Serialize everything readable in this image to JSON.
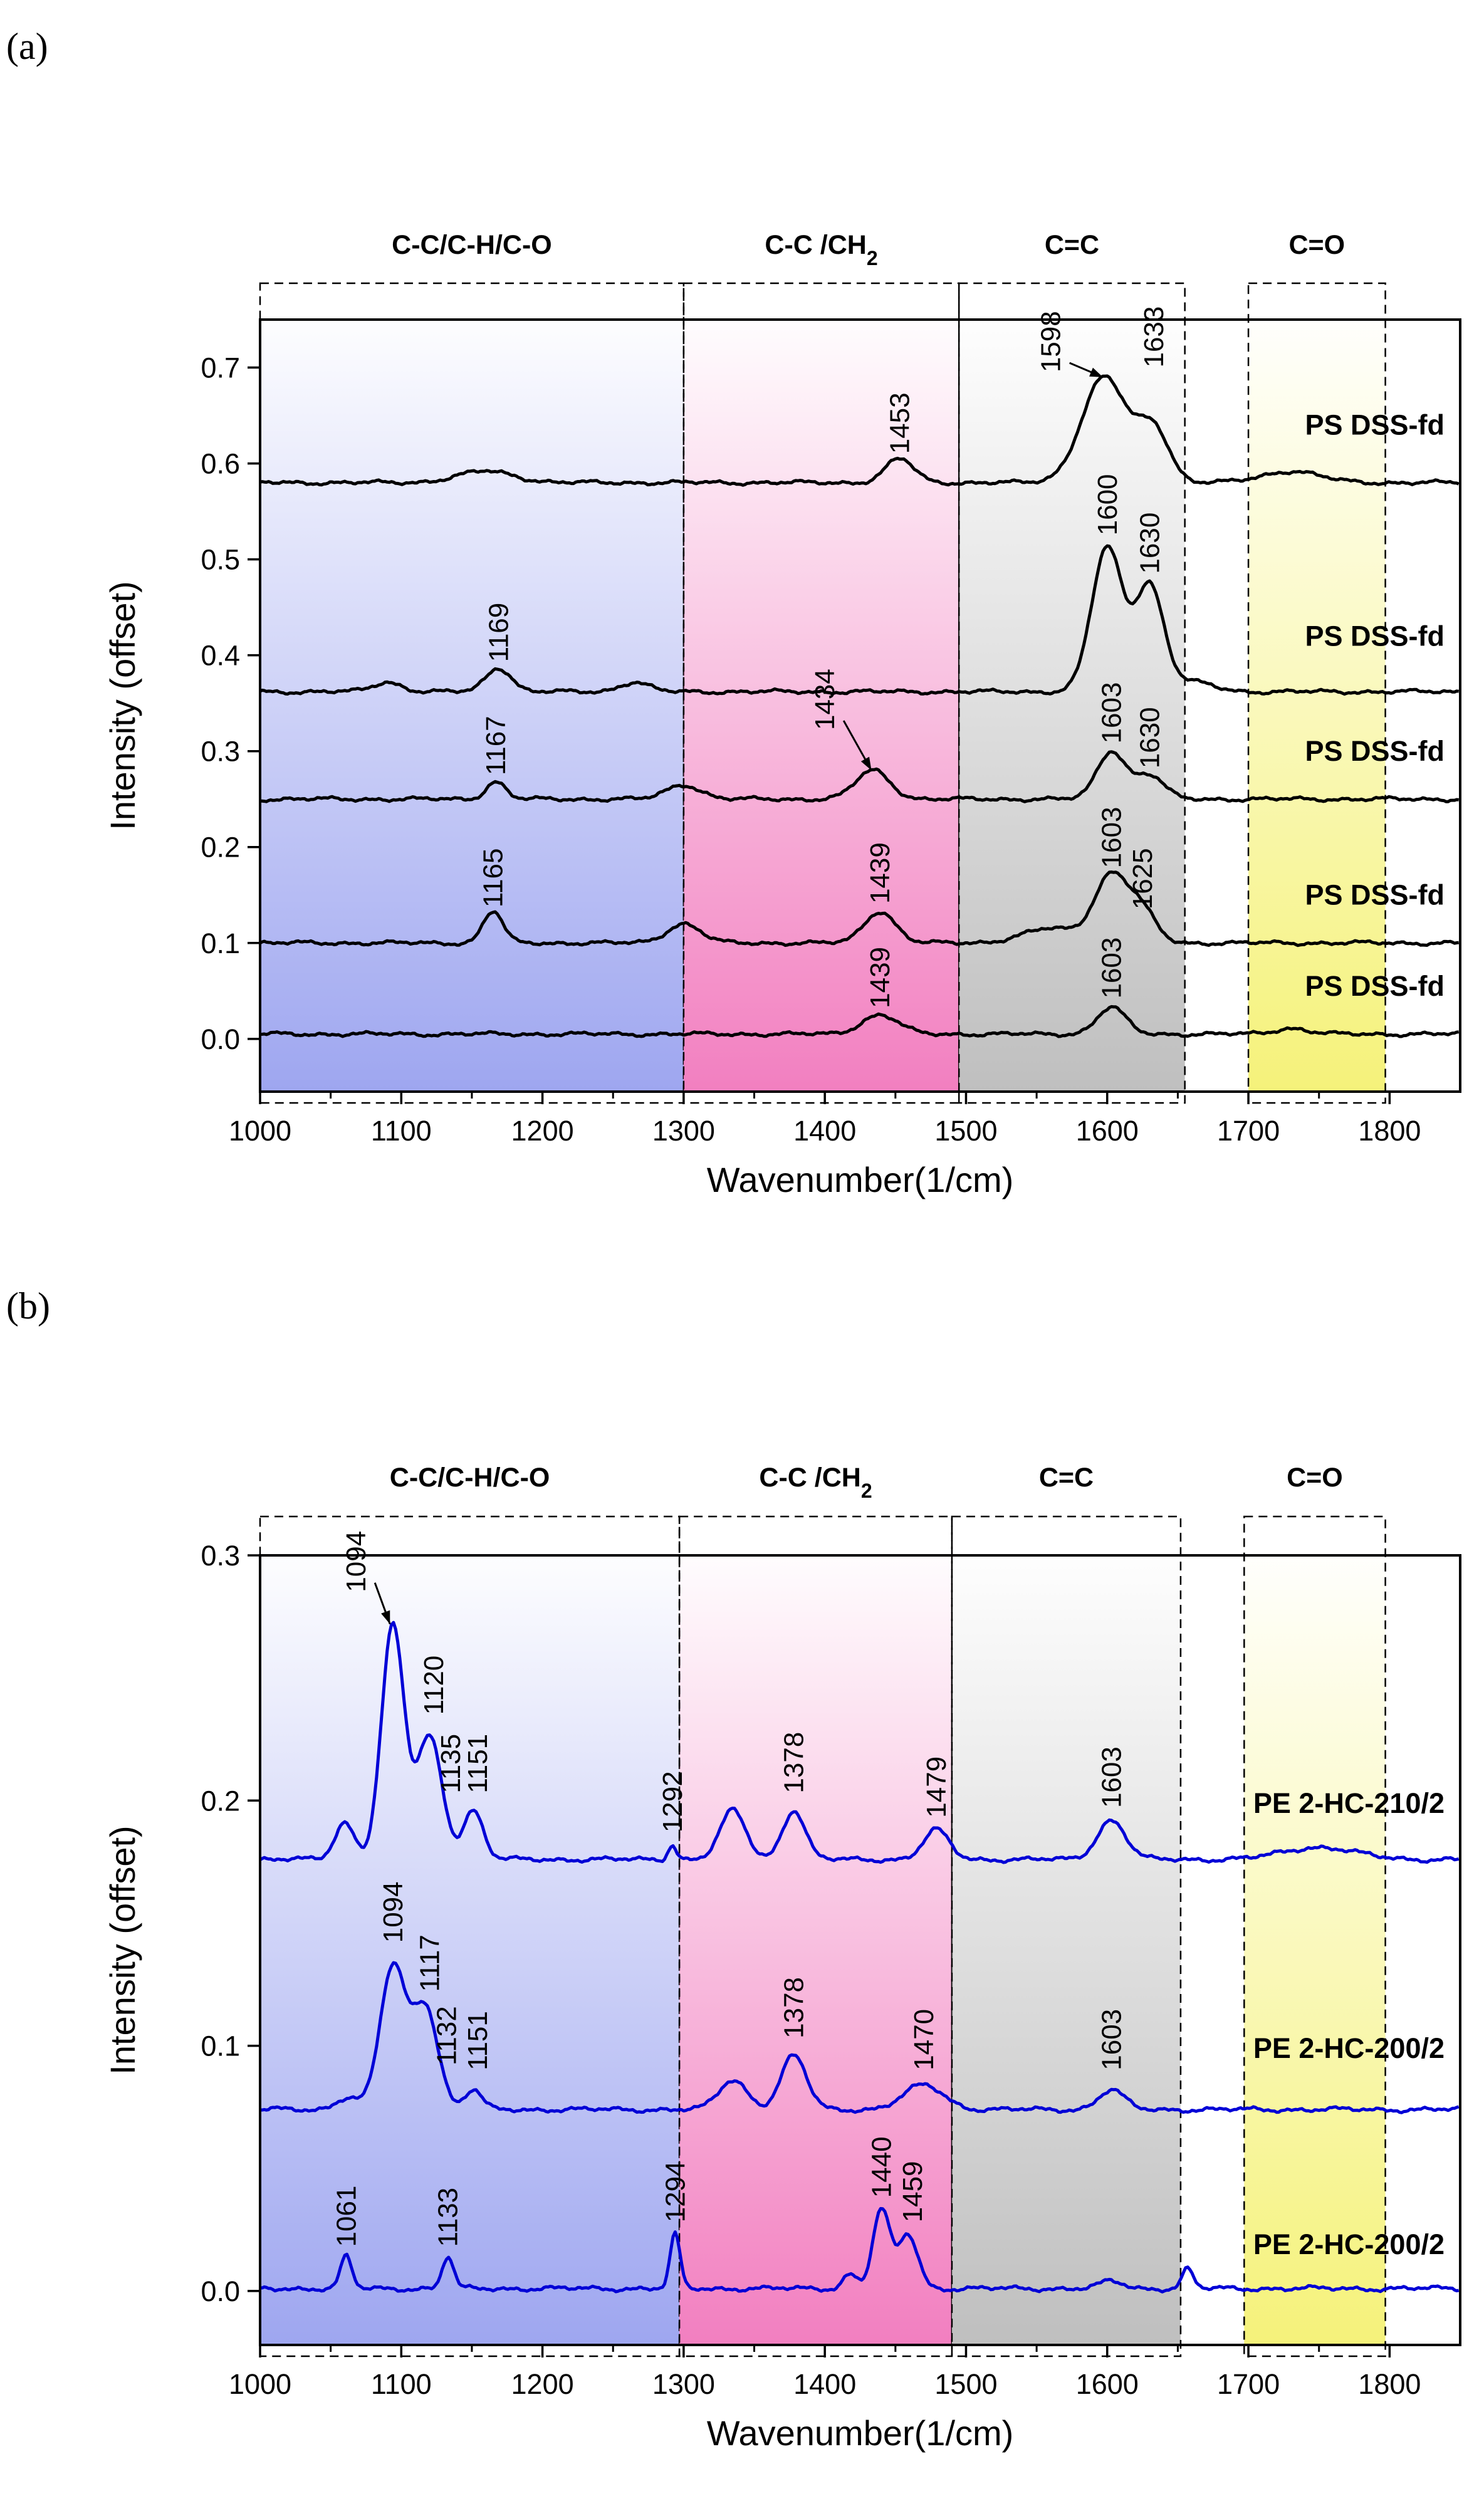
{
  "chart_data": [
    {
      "panel_label": "(a)",
      "type": "line",
      "xlabel": "Wavenumber(1/cm)",
      "ylabel": "Intensity (offset)",
      "xlim": [
        1000,
        1850
      ],
      "ylim": [
        -0.055,
        0.75
      ],
      "x_ticks": [
        "1000",
        "1100",
        "1200",
        "1300",
        "1400",
        "1500",
        "1600",
        "1700",
        "1800"
      ],
      "y_ticks": [
        "0.0",
        "0.1",
        "0.2",
        "0.3",
        "0.4",
        "0.5",
        "0.6",
        "0.7"
      ],
      "line_color": "#000000",
      "regions": [
        {
          "label": "C-C/C-H/C-O",
          "x_range": [
            1000,
            1300
          ],
          "color": "#9ea6f0",
          "sub": ""
        },
        {
          "label": "C-C /CH",
          "sub": "2",
          "x_range": [
            1300,
            1495
          ],
          "color": "#f27fc0"
        },
        {
          "label": "C=C",
          "x_range": [
            1495,
            1655
          ],
          "color": "#bfbfbf",
          "sub": ""
        },
        {
          "label": "C=O",
          "x_range": [
            1700,
            1797
          ],
          "color": "#f5f27a",
          "sub": ""
        }
      ],
      "series": [
        {
          "name": "PS DSS-fd",
          "baseline": 0.58,
          "peaks": [
            {
              "x": 1453,
              "h": 0.025,
              "w": 10
            },
            {
              "x": 1598,
              "h": 0.11,
              "w": 16
            },
            {
              "x": 1633,
              "h": 0.055,
              "w": 11
            },
            {
              "x": 1160,
              "h": 0.012,
              "w": 20
            },
            {
              "x": 1730,
              "h": 0.012,
              "w": 20
            }
          ]
        },
        {
          "name": "PS DSS-fd",
          "baseline": 0.362,
          "peaks": [
            {
              "x": 1169,
              "h": 0.025,
              "w": 9
            },
            {
              "x": 1600,
              "h": 0.15,
              "w": 11
            },
            {
              "x": 1630,
              "h": 0.11,
              "w": 10
            },
            {
              "x": 1090,
              "h": 0.01,
              "w": 10
            },
            {
              "x": 1265,
              "h": 0.01,
              "w": 10
            },
            {
              "x": 1660,
              "h": 0.01,
              "w": 15
            }
          ]
        },
        {
          "name": "PS DSS-fd",
          "baseline": 0.25,
          "peaks": [
            {
              "x": 1167,
              "h": 0.018,
              "w": 7
            },
            {
              "x": 1434,
              "h": 0.03,
              "w": 12
            },
            {
              "x": 1603,
              "h": 0.05,
              "w": 10
            },
            {
              "x": 1630,
              "h": 0.025,
              "w": 10
            },
            {
              "x": 1300,
              "h": 0.015,
              "w": 12
            }
          ]
        },
        {
          "name": "PS DSS-fd",
          "baseline": 0.1,
          "peaks": [
            {
              "x": 1165,
              "h": 0.033,
              "w": 7
            },
            {
              "x": 1439,
              "h": 0.033,
              "w": 11
            },
            {
              "x": 1603,
              "h": 0.07,
              "w": 12
            },
            {
              "x": 1625,
              "h": 0.03,
              "w": 10
            },
            {
              "x": 1300,
              "h": 0.02,
              "w": 12
            },
            {
              "x": 1560,
              "h": 0.015,
              "w": 20
            }
          ]
        },
        {
          "name": "PS DSS-fd",
          "baseline": 0.005,
          "peaks": [
            {
              "x": 1439,
              "h": 0.02,
              "w": 13
            },
            {
              "x": 1603,
              "h": 0.028,
              "w": 10
            },
            {
              "x": 1730,
              "h": 0.006,
              "w": 12
            }
          ]
        }
      ],
      "peak_labels": [
        {
          "text": "1453",
          "x": 1453,
          "y": 0.61
        },
        {
          "text": "1598",
          "x": 1560,
          "y": 0.695,
          "arrow_to": [
            1597,
            0.69
          ]
        },
        {
          "text": "1633",
          "x": 1633,
          "y": 0.7
        },
        {
          "text": "1600",
          "x": 1600,
          "y": 0.525
        },
        {
          "text": "1630",
          "x": 1630,
          "y": 0.485
        },
        {
          "text": "1169",
          "x": 1169,
          "y": 0.393
        },
        {
          "text": "1167",
          "x": 1167,
          "y": 0.275
        },
        {
          "text": "1434",
          "x": 1400,
          "y": 0.322,
          "arrow_to": [
            1433,
            0.28
          ]
        },
        {
          "text": "1603",
          "x": 1603,
          "y": 0.308
        },
        {
          "text": "1630",
          "x": 1630,
          "y": 0.282
        },
        {
          "text": "1165",
          "x": 1165,
          "y": 0.137
        },
        {
          "text": "1439",
          "x": 1439,
          "y": 0.141
        },
        {
          "text": "1603",
          "x": 1603,
          "y": 0.178
        },
        {
          "text": "1625",
          "x": 1625,
          "y": 0.135
        },
        {
          "text": "1439",
          "x": 1439,
          "y": 0.032
        },
        {
          "text": "1603",
          "x": 1603,
          "y": 0.042
        }
      ],
      "series_labels": [
        {
          "text": "PS DSS-fd",
          "y": 0.63
        },
        {
          "text": "PS DSS-fd",
          "y": 0.41
        },
        {
          "text": "PS DSS-fd",
          "y": 0.29
        },
        {
          "text": "PS DSS-fd",
          "y": 0.14
        },
        {
          "text": "PS DSS-fd",
          "y": 0.045
        }
      ]
    },
    {
      "panel_label": "(b)",
      "type": "line",
      "xlabel": "Wavenumber(1/cm)",
      "ylabel": "Intensity (offset)",
      "xlim": [
        1000,
        1850
      ],
      "ylim": [
        -0.022,
        0.3
      ],
      "x_ticks": [
        "1000",
        "1100",
        "1200",
        "1300",
        "1400",
        "1500",
        "1600",
        "1700",
        "1800"
      ],
      "y_ticks": [
        "0.0",
        "0.1",
        "0.2",
        "0.3"
      ],
      "line_color": "#0000d6",
      "regions": [
        {
          "label": "C-C/C-H/C-O",
          "x_range": [
            1000,
            1297
          ],
          "color": "#9ea6f0",
          "sub": ""
        },
        {
          "label": "C-C /CH",
          "sub": "2",
          "x_range": [
            1297,
            1490
          ],
          "color": "#f27fc0"
        },
        {
          "label": "C=C",
          "x_range": [
            1490,
            1652
          ],
          "color": "#bfbfbf",
          "sub": ""
        },
        {
          "label": "C=O",
          "x_range": [
            1697,
            1797
          ],
          "color": "#f5f27a",
          "sub": ""
        }
      ],
      "series": [
        {
          "name": "PE 2-HC-210/2",
          "baseline": 0.176,
          "peaks": [
            {
              "x": 1094,
              "h": 0.095,
              "w": 8
            },
            {
              "x": 1120,
              "h": 0.05,
              "w": 9
            },
            {
              "x": 1151,
              "h": 0.02,
              "w": 7
            },
            {
              "x": 1060,
              "h": 0.015,
              "w": 7
            },
            {
              "x": 1292,
              "h": 0.006,
              "w": 3
            },
            {
              "x": 1135,
              "h": 0.0,
              "w": 5
            },
            {
              "x": 1335,
              "h": 0.02,
              "w": 9
            },
            {
              "x": 1378,
              "h": 0.02,
              "w": 8
            },
            {
              "x": 1479,
              "h": 0.012,
              "w": 9
            },
            {
              "x": 1603,
              "h": 0.016,
              "w": 10
            },
            {
              "x": 1750,
              "h": 0.005,
              "w": 25
            }
          ]
        },
        {
          "name": "PE 2-HC-200/2",
          "baseline": 0.074,
          "peaks": [
            {
              "x": 1094,
              "h": 0.058,
              "w": 9
            },
            {
              "x": 1117,
              "h": 0.042,
              "w": 9
            },
            {
              "x": 1151,
              "h": 0.008,
              "w": 6
            },
            {
              "x": 1062,
              "h": 0.005,
              "w": 8
            },
            {
              "x": 1335,
              "h": 0.012,
              "w": 10
            },
            {
              "x": 1378,
              "h": 0.022,
              "w": 9
            },
            {
              "x": 1470,
              "h": 0.01,
              "w": 14
            },
            {
              "x": 1603,
              "h": 0.008,
              "w": 9
            }
          ]
        },
        {
          "name": "PE 2-HC-200/2",
          "baseline": 0.001,
          "peaks": [
            {
              "x": 1061,
              "h": 0.013,
              "w": 4
            },
            {
              "x": 1133,
              "h": 0.013,
              "w": 4
            },
            {
              "x": 1294,
              "h": 0.022,
              "w": 3.5
            },
            {
              "x": 1440,
              "h": 0.032,
              "w": 6
            },
            {
              "x": 1459,
              "h": 0.022,
              "w": 7
            },
            {
              "x": 1418,
              "h": 0.006,
              "w": 5
            },
            {
              "x": 1603,
              "h": 0.003,
              "w": 8
            },
            {
              "x": 1657,
              "h": 0.008,
              "w": 4
            }
          ]
        }
      ],
      "peak_labels": [
        {
          "text": "1094",
          "x": 1068,
          "y": 0.285,
          "arrow_to": [
            1092,
            0.272
          ]
        },
        {
          "text": "1120",
          "x": 1123,
          "y": 0.235
        },
        {
          "text": "1151",
          "x": 1154,
          "y": 0.203
        },
        {
          "text": "1292",
          "x": 1292,
          "y": 0.187
        },
        {
          "text": "1135",
          "x": 1135,
          "y": 0.203
        },
        {
          "text": "1378",
          "x": 1378,
          "y": 0.203
        },
        {
          "text": "1479",
          "x": 1479,
          "y": 0.193
        },
        {
          "text": "1603",
          "x": 1603,
          "y": 0.197
        },
        {
          "text": "1094",
          "x": 1094,
          "y": 0.142
        },
        {
          "text": "1117",
          "x": 1120,
          "y": 0.122
        },
        {
          "text": "1151",
          "x": 1154,
          "y": 0.09
        },
        {
          "text": "1132",
          "x": 1132,
          "y": 0.092
        },
        {
          "text": "1378",
          "x": 1378,
          "y": 0.103
        },
        {
          "text": "1470",
          "x": 1470,
          "y": 0.09
        },
        {
          "text": "1603",
          "x": 1603,
          "y": 0.09
        },
        {
          "text": "1061",
          "x": 1061,
          "y": 0.018
        },
        {
          "text": "1133",
          "x": 1133,
          "y": 0.018
        },
        {
          "text": "1294",
          "x": 1294,
          "y": 0.028
        },
        {
          "text": "1440",
          "x": 1440,
          "y": 0.038
        },
        {
          "text": "1459",
          "x": 1462,
          "y": 0.028
        }
      ],
      "series_labels": [
        {
          "text": "PE 2-HC-210/2",
          "y": 0.195
        },
        {
          "text": "PE 2-HC-200/2",
          "y": 0.095
        },
        {
          "text": "PE 2-HC-200/2",
          "y": 0.015
        }
      ]
    }
  ]
}
